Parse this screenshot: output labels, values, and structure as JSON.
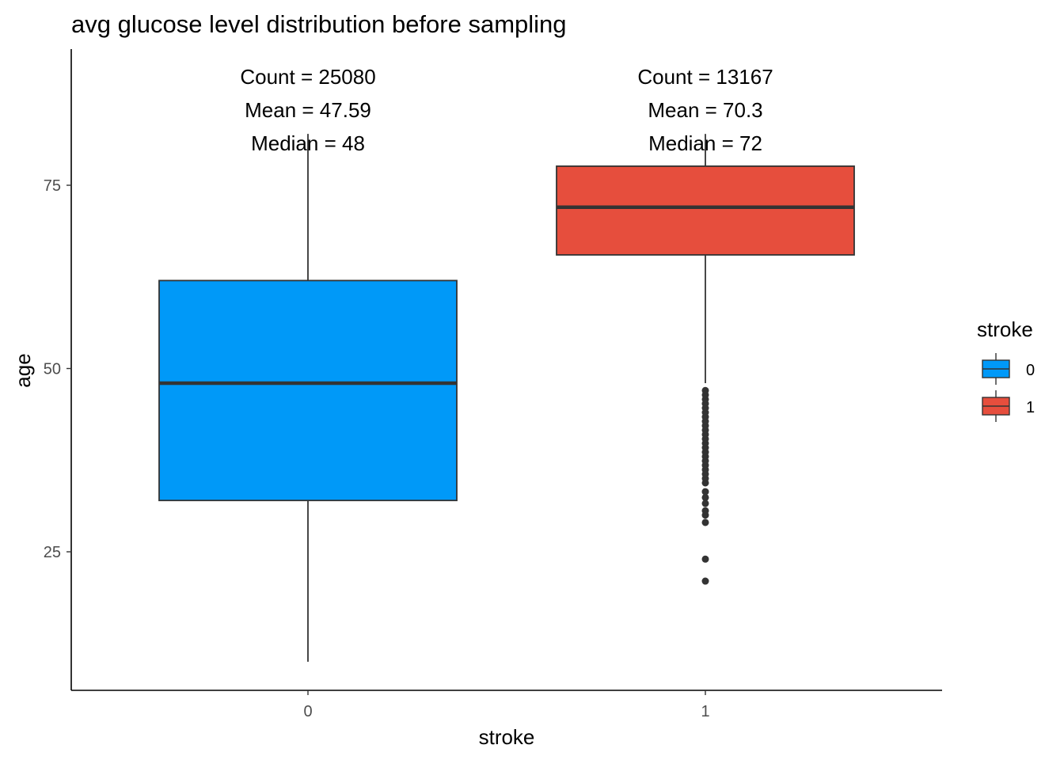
{
  "chart_data": {
    "type": "boxplot",
    "title": "avg glucose level distribution before sampling",
    "xlabel": "stroke",
    "ylabel": "age",
    "ylim": [
      8,
      95
    ],
    "yticks": [
      25,
      50,
      75
    ],
    "grid": false,
    "legend": {
      "title": "stroke",
      "position": "right"
    },
    "categories": [
      "0",
      "1"
    ],
    "series": [
      {
        "name": "0",
        "color": "#0099F8",
        "whisker_low": 10,
        "q1": 32,
        "median": 48,
        "q3": 62,
        "whisker_high": 82,
        "outliers": [],
        "annotation": [
          "Count = 25080",
          "Mean = 47.59",
          "Median = 48"
        ]
      },
      {
        "name": "1",
        "color": "#E64E3D",
        "whisker_low": 48,
        "q1": 65.5,
        "median": 72,
        "q3": 77.6,
        "whisker_high": 82,
        "outliers": [
          21,
          24,
          29,
          30,
          30.6,
          31.6,
          32.4,
          33.2,
          34.4,
          35,
          35.6,
          36.2,
          36.8,
          37.4,
          38,
          38.6,
          39.2,
          39.8,
          40.4,
          41,
          41.6,
          42.2,
          42.8,
          43.4,
          44,
          44.6,
          45.2,
          45.8,
          46.4,
          47
        ],
        "annotation": [
          "Count = 13167",
          "Mean = 70.3",
          "Median = 72"
        ]
      }
    ]
  }
}
